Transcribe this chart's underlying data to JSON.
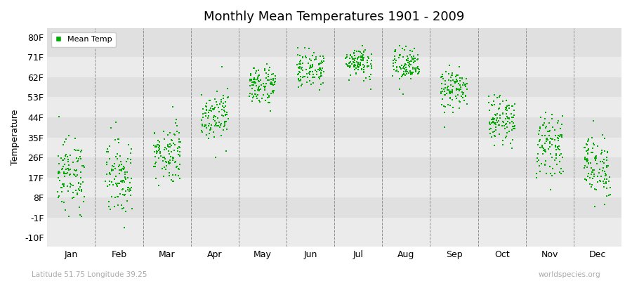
{
  "title": "Monthly Mean Temperatures 1901 - 2009",
  "ylabel": "Temperature",
  "xlabel_months": [
    "Jan",
    "Feb",
    "Mar",
    "Apr",
    "May",
    "Jun",
    "Jul",
    "Aug",
    "Sep",
    "Oct",
    "Nov",
    "Dec"
  ],
  "subtitle_left": "Latitude 51.75 Longitude 39.25",
  "subtitle_right": "worldspecies.org",
  "legend_label": "Mean Temp",
  "dot_color": "#00aa00",
  "background_color": "#ffffff",
  "band_colors": [
    "#ebebeb",
    "#e0e0e0"
  ],
  "yticks": [
    -10,
    -1,
    8,
    17,
    26,
    35,
    44,
    53,
    62,
    71,
    80
  ],
  "ylabels": [
    "-10F",
    "-1F",
    "8F",
    "17F",
    "26F",
    "35F",
    "44F",
    "53F",
    "62F",
    "71F",
    "80F"
  ],
  "ylim": [
    -14,
    84
  ],
  "num_years": 109,
  "monthly_mean_F": [
    18.5,
    17.5,
    28.0,
    45.5,
    58.5,
    65.5,
    69.0,
    67.0,
    56.5,
    43.0,
    31.5,
    22.0
  ],
  "monthly_std_F": [
    8.0,
    8.5,
    6.5,
    5.5,
    4.5,
    4.0,
    3.6,
    4.0,
    4.5,
    5.0,
    6.5,
    7.2
  ],
  "seed": 12345
}
